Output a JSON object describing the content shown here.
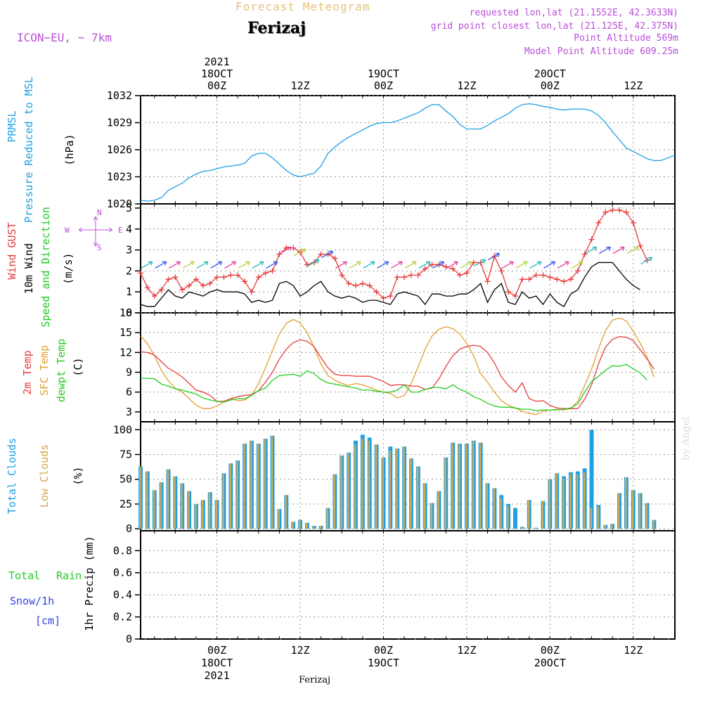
{
  "header": {
    "title": "Forecast Meteogram",
    "station": "Ferizaj",
    "model": "ICON−EU, ~ 7km",
    "requested": "requested lon,lat (21.1552E, 42.3633N)",
    "grid_point": "grid point closest lon,lat (21.125E, 42.375N)",
    "point_altitude": "Point Altitude 569m",
    "model_altitude": "Model Point Altitude 609.25m",
    "watermark": "by Angel",
    "bottom_station": "Ferizaj"
  },
  "time_axis": {
    "top_year": "2021",
    "ticks": [
      {
        "hour": 0,
        "line1": "18OCT",
        "line2": "00Z"
      },
      {
        "hour": 12,
        "line1": "",
        "line2": "12Z"
      },
      {
        "hour": 24,
        "line1": "19OCT",
        "line2": "00Z"
      },
      {
        "hour": 36,
        "line1": "",
        "line2": "12Z"
      },
      {
        "hour": 48,
        "line1": "20OCT",
        "line2": "00Z"
      },
      {
        "hour": 60,
        "line1": "",
        "line2": "12Z"
      }
    ],
    "bottom_ticks": [
      {
        "hour": 0,
        "line1": "00Z",
        "line2": "18OCT",
        "line3": "2021"
      },
      {
        "hour": 12,
        "line1": "12Z"
      },
      {
        "hour": 24,
        "line1": "00Z",
        "line2": "19OCT"
      },
      {
        "hour": 36,
        "line1": "12Z"
      },
      {
        "hour": 48,
        "line1": "00Z",
        "line2": "20OCT"
      },
      {
        "hour": 60,
        "line1": "12Z"
      }
    ],
    "range_hours": [
      -11,
      66
    ]
  },
  "colors": {
    "pressure": "#1fa0e6",
    "gust": "#e63c3c",
    "wind": "#000000",
    "temp": "#e63c3c",
    "sfc": "#e0a030",
    "dew": "#22cc22",
    "total_clouds": "#1fa0e6",
    "low_clouds": "#d4a850",
    "rain": "#22cc22",
    "snow": "#3344dd",
    "compass": "#b84fd8"
  },
  "chart_data": [
    {
      "type": "line",
      "panel": "pressure",
      "labels": {
        "l1": "PRMSL",
        "l2": "Pressure Reduced to MSL",
        "unit": "(hPa)"
      },
      "ylim": [
        1020,
        1032
      ],
      "yticks": [
        1020,
        1023,
        1026,
        1029,
        1032
      ],
      "series": [
        {
          "name": "PRMSL",
          "x": [
            -11,
            -10,
            -9,
            -8,
            -7,
            -6,
            -5,
            -4,
            -3,
            -2,
            -1,
            0,
            1,
            2,
            3,
            4,
            5,
            6,
            7,
            8,
            9,
            10,
            11,
            12,
            13,
            14,
            15,
            16,
            17,
            18,
            19,
            20,
            21,
            22,
            23,
            24,
            25,
            26,
            27,
            28,
            29,
            30,
            31,
            32,
            33,
            34,
            35,
            36,
            37,
            38,
            39,
            40,
            41,
            42,
            43,
            44,
            45,
            46,
            47,
            48,
            49,
            50,
            51,
            52,
            53,
            54,
            55,
            56,
            57,
            58,
            59,
            60,
            61,
            62,
            63,
            64,
            65,
            66
          ],
          "values": [
            1020.4,
            1020.3,
            1020.4,
            1020.7,
            1021.5,
            1021.9,
            1022.3,
            1022.9,
            1023.3,
            1023.6,
            1023.7,
            1023.9,
            1024.1,
            1024.2,
            1024.3,
            1024.5,
            1025.3,
            1025.6,
            1025.6,
            1025.1,
            1024.4,
            1023.7,
            1023.2,
            1023.0,
            1023.2,
            1023.4,
            1024.2,
            1025.6,
            1026.3,
            1026.9,
            1027.4,
            1027.8,
            1028.2,
            1028.6,
            1028.9,
            1029.0,
            1029.0,
            1029.2,
            1029.5,
            1029.8,
            1030.1,
            1030.6,
            1031.0,
            1031.0,
            1030.3,
            1029.7,
            1028.8,
            1028.3,
            1028.3,
            1028.3,
            1028.7,
            1029.2,
            1029.6,
            1030.0,
            1030.6,
            1031.0,
            1031.1,
            1031.0,
            1030.8,
            1030.7,
            1030.5,
            1030.4,
            1030.5,
            1030.5,
            1030.5,
            1030.3,
            1029.8,
            1029.0,
            1028.0,
            1027.1,
            1026.2,
            1025.8,
            1025.4,
            1025.0,
            1024.8,
            1024.8,
            1025.1,
            1025.4
          ]
        }
      ]
    },
    {
      "type": "line",
      "panel": "wind",
      "labels": {
        "l1": "Wind GUST",
        "l2": "10m Wind",
        "l3": "Speed and Direction",
        "unit": "(m/s)"
      },
      "compass": {
        "n": "N",
        "s": "S",
        "w": "W",
        "e": "E"
      },
      "ylim": [
        0,
        5.2
      ],
      "yticks": [
        0,
        1,
        2,
        3,
        4,
        5
      ],
      "series": [
        {
          "name": "Wind GUST",
          "values": [
            1.9,
            1.2,
            0.8,
            1.1,
            1.6,
            1.7,
            1.1,
            1.3,
            1.6,
            1.3,
            1.4,
            1.7,
            1.7,
            1.8,
            1.8,
            1.5,
            1.0,
            1.7,
            1.9,
            2.0,
            2.8,
            3.1,
            3.1,
            2.9,
            2.3,
            2.4,
            2.8,
            2.8,
            2.6,
            1.8,
            1.4,
            1.3,
            1.4,
            1.3,
            1.0,
            0.7,
            0.8,
            1.7,
            1.7,
            1.8,
            1.8,
            2.1,
            2.3,
            2.3,
            2.2,
            2.1,
            1.8,
            1.9,
            2.4,
            2.4,
            1.5,
            2.7,
            2.0,
            1.0,
            0.8,
            1.6,
            1.6,
            1.8,
            1.8,
            1.7,
            1.6,
            1.5,
            1.6,
            2.0,
            2.8,
            3.5,
            4.3,
            4.8,
            4.9,
            4.9,
            4.8,
            4.3,
            3.2,
            2.5
          ]
        },
        {
          "name": "10m Wind",
          "values": [
            0.4,
            0.3,
            0.3,
            0.7,
            1.1,
            0.8,
            0.7,
            1.0,
            0.9,
            0.8,
            1.0,
            1.1,
            1.0,
            1.0,
            1.0,
            0.9,
            0.5,
            0.6,
            0.5,
            0.6,
            1.4,
            1.5,
            1.3,
            0.8,
            1.0,
            1.3,
            1.5,
            1.0,
            0.8,
            0.7,
            0.8,
            0.7,
            0.5,
            0.6,
            0.6,
            0.5,
            0.4,
            0.9,
            1.0,
            0.9,
            0.8,
            0.4,
            0.9,
            0.9,
            0.8,
            0.8,
            0.9,
            0.9,
            1.1,
            1.4,
            0.5,
            1.1,
            1.4,
            0.5,
            0.4,
            1.0,
            0.7,
            0.8,
            0.4,
            0.9,
            0.5,
            0.3,
            0.9,
            1.1,
            1.7,
            2.2,
            2.4,
            2.4,
            2.4,
            2.0,
            1.6,
            1.3,
            1.1
          ]
        }
      ]
    },
    {
      "type": "line",
      "panel": "temperature",
      "labels": {
        "l1": "2m Temp",
        "l2": "SFC Temp",
        "l3": "dewpt Temp",
        "unit": "(C)"
      },
      "ylim": [
        1.5,
        18
      ],
      "yticks": [
        3,
        6,
        9,
        12,
        15,
        18
      ],
      "series": [
        {
          "name": "2m Temp",
          "values": [
            12.1,
            12.0,
            11.6,
            10.6,
            9.6,
            9.0,
            8.3,
            7.3,
            6.3,
            6.0,
            5.5,
            4.6,
            4.6,
            5.0,
            5.3,
            5.5,
            5.6,
            6.2,
            7.5,
            9.0,
            11.0,
            12.5,
            13.5,
            13.9,
            13.7,
            12.9,
            11.2,
            9.7,
            8.7,
            8.5,
            8.5,
            8.4,
            8.4,
            8.4,
            8.0,
            7.6,
            7.0,
            7.1,
            7.1,
            6.9,
            6.9,
            6.4,
            6.6,
            8.0,
            9.9,
            11.5,
            12.5,
            12.9,
            13.1,
            12.9,
            12.0,
            10.4,
            8.3,
            7.0,
            6.0,
            7.4,
            5.0,
            4.6,
            4.7,
            4.0,
            3.6,
            3.5,
            3.5,
            3.5,
            4.9,
            7.1,
            10.3,
            12.8,
            14.0,
            14.4,
            14.3,
            13.8,
            12.4,
            11.0,
            9.5
          ]
        },
        {
          "name": "SFC Temp",
          "values": [
            14.5,
            13.3,
            11.5,
            9.3,
            7.7,
            6.6,
            6.0,
            5.0,
            4.0,
            3.5,
            3.5,
            3.9,
            4.5,
            5.0,
            4.7,
            4.8,
            5.5,
            7.3,
            9.7,
            12.3,
            14.8,
            16.4,
            17.0,
            16.5,
            15.0,
            12.8,
            10.2,
            8.5,
            7.8,
            7.3,
            7.0,
            7.3,
            7.1,
            6.7,
            6.3,
            6.0,
            5.8,
            5.1,
            5.5,
            7.3,
            9.8,
            12.5,
            14.5,
            15.5,
            15.9,
            15.6,
            14.8,
            13.4,
            11.5,
            8.8,
            7.5,
            6.0,
            4.7,
            4.0,
            3.6,
            3.1,
            2.8,
            2.6,
            3.1,
            3.3,
            3.4,
            3.3,
            3.5,
            4.6,
            7.0,
            9.5,
            12.6,
            15.3,
            16.9,
            17.2,
            16.8,
            15.2,
            13.4,
            11.3,
            8.3
          ]
        },
        {
          "name": "dewpt Temp",
          "values": [
            8.1,
            8.1,
            8.0,
            7.2,
            6.9,
            6.5,
            6.3,
            6.0,
            5.7,
            5.1,
            4.8,
            4.6,
            4.5,
            4.8,
            5.0,
            5.0,
            5.5,
            6.2,
            6.6,
            7.8,
            8.5,
            8.6,
            8.7,
            8.4,
            9.2,
            8.8,
            7.9,
            7.4,
            7.2,
            7.0,
            6.8,
            6.6,
            6.3,
            6.3,
            6.1,
            6.0,
            6.0,
            6.3,
            7.1,
            6.0,
            6.0,
            6.4,
            6.7,
            6.7,
            6.5,
            7.1,
            6.4,
            6.0,
            5.3,
            4.9,
            4.3,
            3.9,
            3.7,
            3.7,
            3.6,
            3.4,
            3.4,
            3.2,
            3.3,
            3.3,
            3.3,
            3.4,
            3.6,
            4.2,
            6.0,
            7.6,
            8.4,
            9.3,
            10.0,
            9.9,
            10.2,
            9.5,
            8.9,
            7.8
          ]
        }
      ]
    },
    {
      "type": "bar",
      "panel": "clouds",
      "labels": {
        "l1": "Total Clouds",
        "l2": "Low Clouds",
        "unit": "(%)"
      },
      "ylim": [
        -2,
        108
      ],
      "yticks": [
        0,
        25,
        50,
        75,
        100
      ],
      "series": [
        {
          "name": "Total Clouds",
          "values": [
            63,
            58,
            39,
            47,
            60,
            53,
            46,
            38,
            25,
            29,
            37,
            29,
            56,
            66,
            69,
            86,
            89,
            86,
            91,
            94,
            20,
            34,
            7,
            9,
            6,
            3,
            3,
            21,
            55,
            74,
            77,
            89,
            95,
            92,
            85,
            72,
            83,
            81,
            83,
            71,
            63,
            46,
            26,
            38,
            72,
            87,
            86,
            86,
            89,
            87,
            46,
            41,
            34,
            25,
            21,
            2,
            29,
            1,
            28,
            50,
            56,
            53,
            57,
            58,
            61,
            100,
            24,
            4,
            5,
            36,
            52,
            39,
            36,
            26,
            9
          ]
        },
        {
          "name": "Low Clouds",
          "values": [
            63,
            58,
            39,
            47,
            60,
            53,
            46,
            38,
            25,
            29,
            37,
            29,
            56,
            66,
            69,
            86,
            89,
            86,
            91,
            94,
            20,
            34,
            7,
            9,
            6,
            3,
            3,
            21,
            55,
            74,
            77,
            85,
            91,
            89,
            85,
            72,
            79,
            81,
            83,
            71,
            63,
            46,
            26,
            38,
            72,
            87,
            86,
            86,
            89,
            87,
            46,
            41,
            31,
            23,
            0,
            2,
            29,
            1,
            28,
            50,
            56,
            51,
            55,
            55,
            57,
            21,
            22,
            4,
            5,
            36,
            52,
            39,
            36,
            26,
            9
          ]
        }
      ]
    },
    {
      "type": "bar",
      "panel": "precip",
      "labels": {
        "l1": "Total",
        "l2": "Rain",
        "l3": "Snow/1h",
        "l4": "[cm]",
        "unit": "1hr Precip (mm)"
      },
      "ylim": [
        0,
        0.98
      ],
      "yticks": [
        0,
        0.2,
        0.4,
        0.6,
        0.8
      ],
      "series": [
        {
          "name": "Rain",
          "values": []
        }
      ]
    }
  ]
}
